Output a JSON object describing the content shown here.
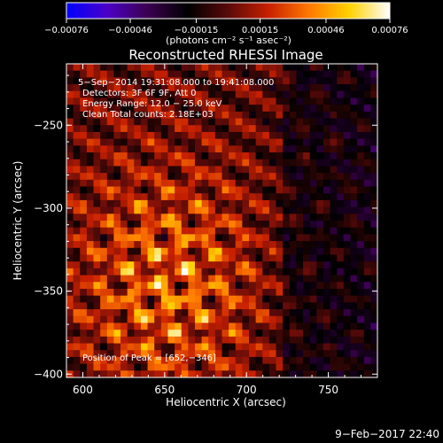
{
  "chart_data": {
    "type": "heatmap",
    "title": "Reconstructed RHESSI Image",
    "xlabel": "Heliocentric X (arcsec)",
    "ylabel": "Heliocentric Y (arcsec)",
    "xlim": [
      590,
      780
    ],
    "ylim": [
      -402,
      -213
    ],
    "x_ticks": [
      {
        "value": 600,
        "label": "600"
      },
      {
        "value": 650,
        "label": "650"
      },
      {
        "value": 700,
        "label": "700"
      },
      {
        "value": 750,
        "label": "750"
      }
    ],
    "y_ticks": [
      {
        "value": -250,
        "label": "−250"
      },
      {
        "value": -300,
        "label": "−300"
      },
      {
        "value": -350,
        "label": "−350"
      },
      {
        "value": -400,
        "label": "−400"
      }
    ],
    "colorbar": {
      "range": [
        -0.00076,
        0.00076
      ],
      "ticks": [
        {
          "value": -0.00076,
          "label": "−0.00076"
        },
        {
          "value": -0.00046,
          "label": "−0.00046"
        },
        {
          "value": -0.00015,
          "label": "−0.00015"
        },
        {
          "value": 0.00015,
          "label": "0.00015"
        },
        {
          "value": 0.00046,
          "label": "0.00046"
        },
        {
          "value": 0.00076,
          "label": "0.00076"
        }
      ],
      "unit_label": "(photons cm⁻² s⁻¹ asec⁻²)",
      "colormap": [
        "#0000ff",
        "#4b00c8",
        "#3c0050",
        "#000000",
        "#5a0a0a",
        "#c82000",
        "#ff7800",
        "#ffd200",
        "#ffffff"
      ]
    },
    "annotations": [
      "5−Sep−2014 19:31:08.000 to 19:41:08.000",
      "Detectors: 3F 6F 9F, Att 0",
      "Energy Range: 12.0 − 25.0 keV",
      "Clean    Total counts: 2.18E+03"
    ],
    "peak_label": "Position of Peak = [652,−346]",
    "peak_position": [
      652,
      -346
    ],
    "timestamp": "9−Feb−2017 22:40",
    "grid": false
  }
}
